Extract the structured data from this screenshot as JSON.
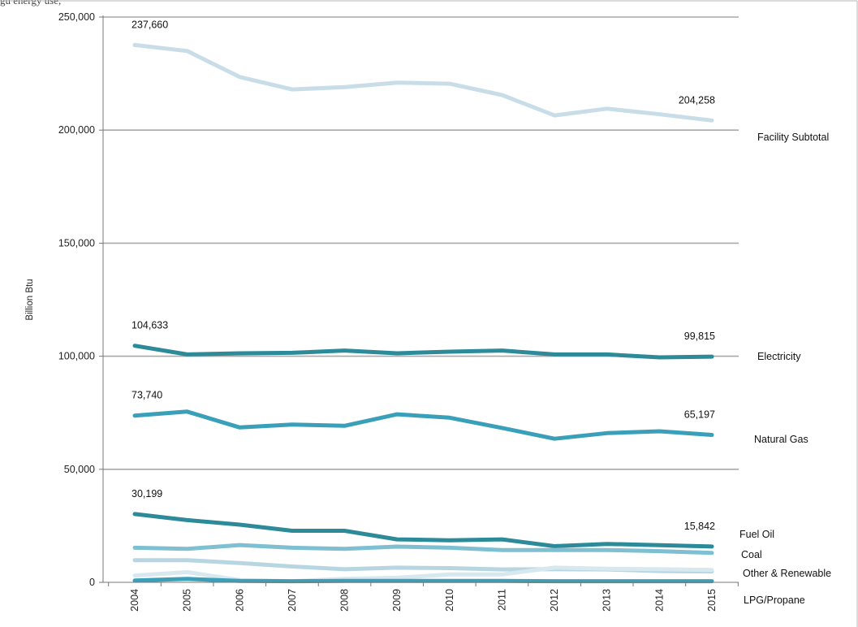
{
  "header_fragment": "gu                                              energy use, ",
  "chart_data": {
    "type": "line",
    "title": "",
    "xlabel": "",
    "ylabel": "Billion Btu",
    "ylim": [
      0,
      250000
    ],
    "yticks": [
      "0",
      "50,000",
      "100,000",
      "150,000",
      "200,000",
      "250,000"
    ],
    "ytick_values": [
      0,
      50000,
      100000,
      150000,
      200000,
      250000
    ],
    "grid": true,
    "categories": [
      "2004",
      "2005",
      "2006",
      "2007",
      "2008",
      "2009",
      "2010",
      "2011",
      "2012",
      "2013",
      "2014",
      "2015"
    ],
    "series": [
      {
        "name": "Facility Subtotal",
        "color": "#c9dde9",
        "values": [
          237660,
          235000,
          223500,
          218000,
          219000,
          221000,
          220500,
          215500,
          206500,
          209500,
          207000,
          204258
        ]
      },
      {
        "name": "Electricity",
        "color": "#2d8a98",
        "values": [
          104633,
          100800,
          101300,
          101500,
          102500,
          101300,
          102000,
          102500,
          100800,
          100800,
          99500,
          99815
        ]
      },
      {
        "name": "Natural Gas",
        "color": "#3aa0ba",
        "values": [
          73740,
          75500,
          68500,
          69800,
          69200,
          74300,
          72800,
          68300,
          63500,
          66000,
          66800,
          65197
        ]
      },
      {
        "name": "Fuel Oil",
        "color": "#2d8a98",
        "values": [
          30199,
          27500,
          25500,
          22800,
          22800,
          19000,
          18600,
          19000,
          16000,
          17000,
          16400,
          15842
        ]
      },
      {
        "name": "Coal",
        "color": "#7fbfd2",
        "values": [
          15300,
          14800,
          16500,
          15300,
          14800,
          15800,
          15300,
          14300,
          14300,
          14300,
          13800,
          13000
        ]
      },
      {
        "name": "Other & Renewable",
        "color": "#b8d6e2",
        "values": [
          9800,
          9800,
          8500,
          7000,
          5800,
          6500,
          6300,
          5700,
          5800,
          5700,
          5000,
          4800
        ]
      },
      {
        "name": "",
        "color": "#d8e8ef",
        "values": [
          3000,
          4500,
          1000,
          500,
          1500,
          2000,
          3500,
          3500,
          6500,
          6000,
          5800,
          5500
        ]
      },
      {
        "name": "LPG/Propane",
        "color": "#3aa0ba",
        "values": [
          800,
          1500,
          600,
          500,
          600,
          600,
          600,
          600,
          500,
          500,
          500,
          500
        ]
      }
    ],
    "data_labels": [
      {
        "series": "Facility Subtotal",
        "index": 0,
        "text": "237,660"
      },
      {
        "series": "Facility Subtotal",
        "index": 11,
        "text": "204,258"
      },
      {
        "series": "Electricity",
        "index": 0,
        "text": "104,633"
      },
      {
        "series": "Electricity",
        "index": 11,
        "text": "99,815"
      },
      {
        "series": "Natural Gas",
        "index": 0,
        "text": "73,740"
      },
      {
        "series": "Natural Gas",
        "index": 11,
        "text": "65,197"
      },
      {
        "series": "Fuel Oil",
        "index": 0,
        "text": "30,199"
      },
      {
        "series": "Fuel Oil",
        "index": 11,
        "text": "15,842"
      }
    ],
    "series_labels": [
      "Facility Subtotal",
      "Electricity",
      "Natural Gas",
      "Fuel Oil",
      "Coal",
      "Other & Renewable",
      "LPG/Propane"
    ]
  }
}
